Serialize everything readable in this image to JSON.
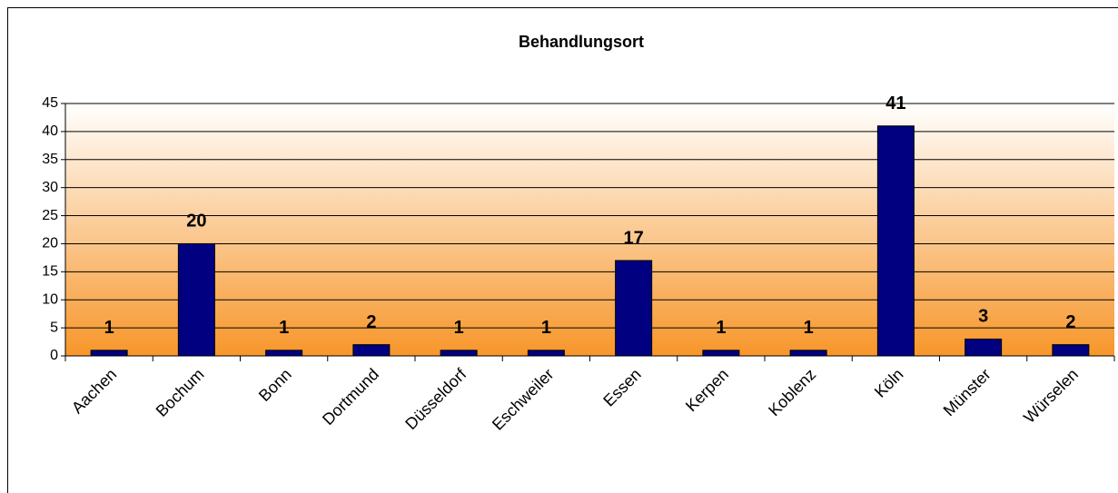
{
  "chart_data": {
    "type": "bar",
    "title": "Behandlungsort",
    "categories": [
      "Aachen",
      "Bochum",
      "Bonn",
      "Dortmund",
      "Düsseldorf",
      "Eschweiler",
      "Essen",
      "Kerpen",
      "Koblenz",
      "Köln",
      "Münster",
      "Würselen"
    ],
    "values": [
      1,
      20,
      1,
      2,
      1,
      1,
      17,
      1,
      1,
      41,
      3,
      2
    ],
    "color": "#000080",
    "ylim": [
      0,
      45
    ],
    "yticks": [
      0,
      5,
      10,
      15,
      20,
      25,
      30,
      35,
      40,
      45
    ],
    "grid": true
  }
}
